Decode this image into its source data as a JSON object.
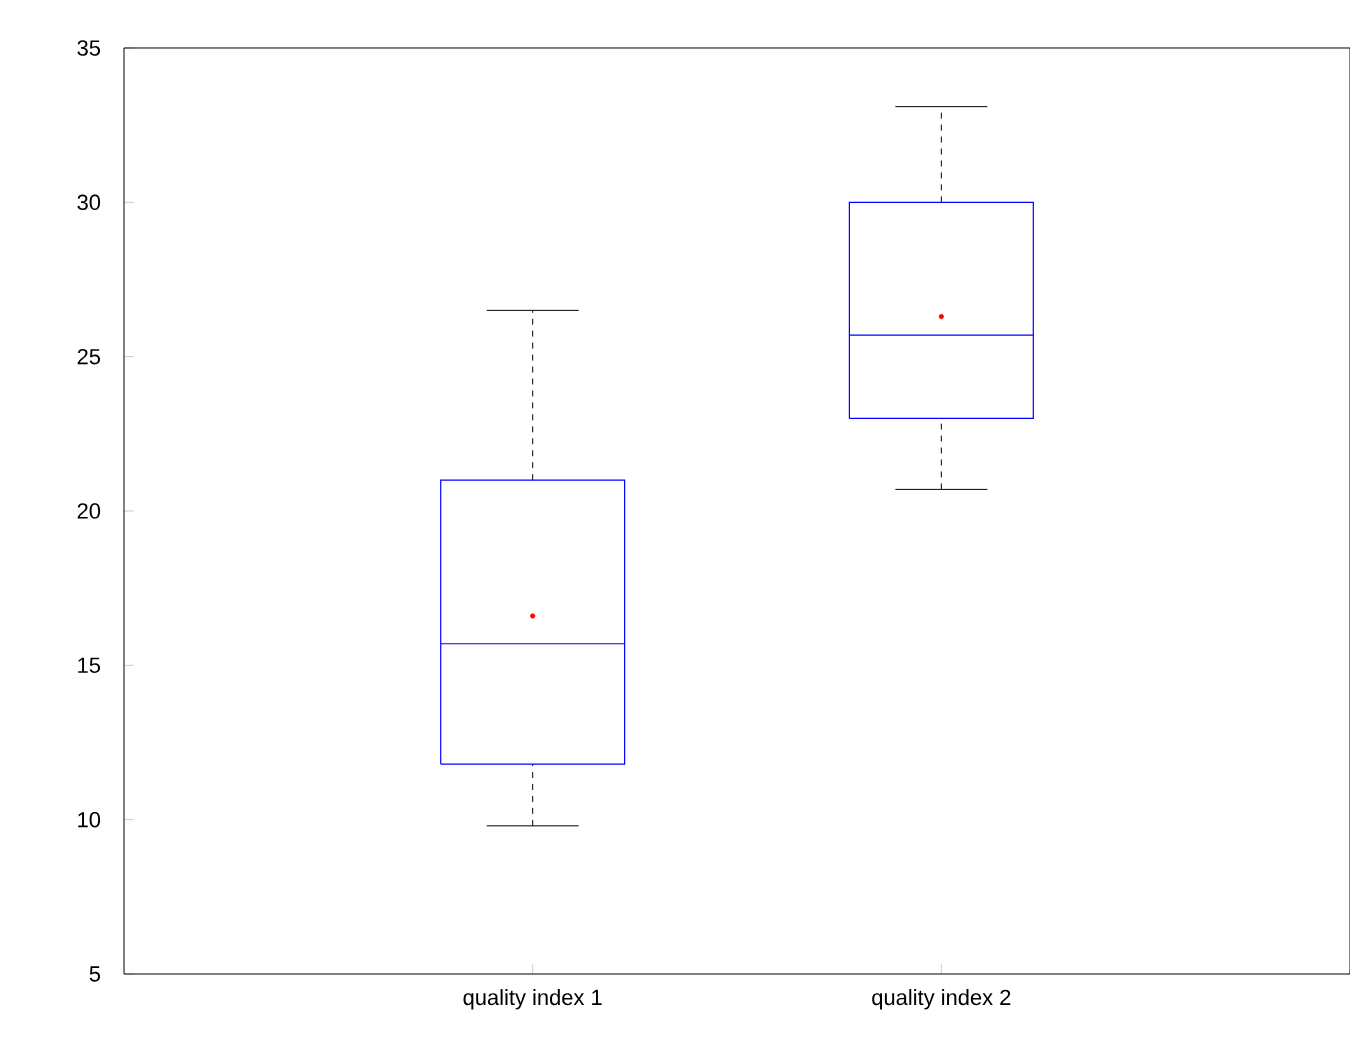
{
  "chart_data": {
    "type": "box",
    "categories": [
      "quality index 1",
      "quality index 2"
    ],
    "ylim": [
      5,
      35
    ],
    "yticks": [
      5,
      10,
      15,
      20,
      25,
      30,
      35
    ],
    "series": [
      {
        "color": "#0000ff",
        "boxes": [
          {
            "low": 9.8,
            "q1": 11.8,
            "median": 15.7,
            "q3": 21.0,
            "high": 26.5,
            "mean": 16.6
          },
          {
            "low": 20.7,
            "q1": 23.0,
            "median": 25.7,
            "q3": 30.0,
            "high": 33.1,
            "mean": 26.3
          }
        ]
      }
    ]
  }
}
